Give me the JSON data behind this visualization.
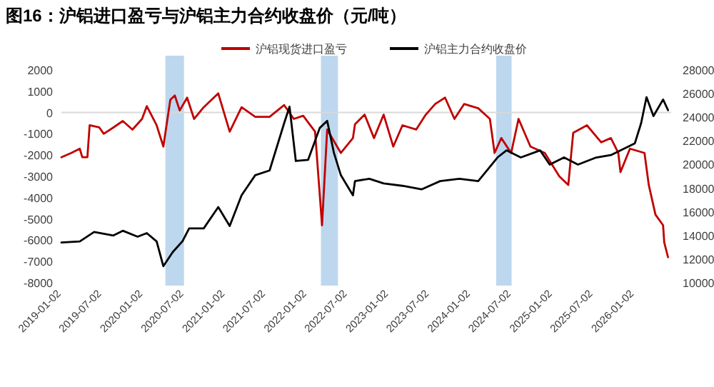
{
  "chart_data": {
    "type": "line",
    "title": "图16：沪铝进口盈亏与沪铝主力合约收盘价（元/吨）",
    "xlim": [
      "2019-01-02",
      "2026-06-15"
    ],
    "xticks": [
      "2019-01-02",
      "2019-07-02",
      "2020-01-02",
      "2020-07-02",
      "2021-01-02",
      "2021-07-02",
      "2022-01-02",
      "2022-07-02",
      "2023-01-02",
      "2023-07-02",
      "2024-01-02",
      "2024-07-02",
      "2025-01-02",
      "2025-07-02",
      "2026-01-02"
    ],
    "ylim": [
      -8000,
      2000
    ],
    "yticks": [
      -8000,
      -7000,
      -6000,
      -5000,
      -4000,
      -3000,
      -2000,
      -1000,
      0,
      1000,
      2000
    ],
    "y2lim": [
      10000,
      28000
    ],
    "y2ticks": [
      10000,
      12000,
      14000,
      16000,
      18000,
      20000,
      22000,
      24000,
      26000,
      28000
    ],
    "legend": "top",
    "grid": false,
    "line_style": "solid",
    "marker": "none",
    "ref_lines": [
      {
        "axis": "y",
        "value": 0,
        "color": "#d9d9d9"
      }
    ],
    "bands": [
      {
        "axis": "x",
        "from": "2020-04-10",
        "to": "2020-07-02",
        "color": "#bdd7ee"
      },
      {
        "axis": "x",
        "from": "2022-03-05",
        "to": "2022-05-20",
        "color": "#bdd7ee"
      },
      {
        "axis": "x",
        "from": "2024-04-25",
        "to": "2024-07-03",
        "color": "#bdd7ee"
      }
    ],
    "series": [
      {
        "name": "沪铝现货进口盈亏",
        "color": "#c00000",
        "axis": "y",
        "x": [
          "2019-01-02",
          "2019-02-15",
          "2019-03-25",
          "2019-04-05",
          "2019-04-28",
          "2019-05-08",
          "2019-06-20",
          "2019-07-10",
          "2019-08-22",
          "2019-10-03",
          "2019-11-15",
          "2019-12-28",
          "2020-01-18",
          "2020-03-02",
          "2020-04-01",
          "2020-05-02",
          "2020-05-22",
          "2020-06-13",
          "2020-07-16",
          "2020-08-16",
          "2020-09-28",
          "2020-12-02",
          "2021-01-22",
          "2021-03-16",
          "2021-05-16",
          "2021-07-19",
          "2021-09-22",
          "2021-11-04",
          "2021-12-16",
          "2022-02-07",
          "2022-03-10",
          "2022-04-02",
          "2022-06-02",
          "2022-07-26",
          "2022-08-04",
          "2022-09-16",
          "2022-10-28",
          "2022-12-10",
          "2023-01-22",
          "2023-03-04",
          "2023-05-04",
          "2023-06-16",
          "2023-07-28",
          "2023-09-10",
          "2023-10-22",
          "2023-12-04",
          "2024-02-05",
          "2024-03-28",
          "2024-04-18",
          "2024-05-18",
          "2024-07-01",
          "2024-08-03",
          "2024-09-25",
          "2024-11-28",
          "2025-02-01",
          "2025-03-13",
          "2025-04-04",
          "2025-06-04",
          "2025-08-07",
          "2025-09-19",
          "2025-10-22",
          "2025-11-01",
          "2025-12-13",
          "2026-02-16",
          "2026-03-07",
          "2026-04-06",
          "2026-05-10",
          "2026-05-15",
          "2026-06-01"
        ],
        "values": [
          -2100,
          -1900,
          -1700,
          -2100,
          -2100,
          -600,
          -700,
          -1000,
          -700,
          -400,
          -800,
          -300,
          300,
          -600,
          -1600,
          600,
          800,
          100,
          700,
          -300,
          250,
          900,
          -900,
          250,
          -200,
          -200,
          350,
          -300,
          -150,
          -900,
          -5300,
          -800,
          -1900,
          -1200,
          -550,
          -100,
          -1200,
          -100,
          -1600,
          -600,
          -800,
          -100,
          400,
          700,
          -300,
          400,
          200,
          -300,
          -1900,
          -1200,
          -1900,
          -300,
          -1600,
          -1900,
          -3000,
          -3400,
          -950,
          -600,
          -1400,
          -1200,
          -1900,
          -2800,
          -1700,
          -1900,
          -3400,
          -4800,
          -5300,
          -6100,
          -6800
        ]
      },
      {
        "name": "沪铝主力合约收盘价",
        "color": "#000000",
        "axis": "y2",
        "x": [
          "2019-01-02",
          "2019-03-25",
          "2019-05-28",
          "2019-08-22",
          "2019-10-03",
          "2019-12-08",
          "2020-01-18",
          "2020-03-02",
          "2020-04-01",
          "2020-05-13",
          "2020-06-25",
          "2020-07-25",
          "2020-09-28",
          "2020-12-02",
          "2021-01-22",
          "2021-03-16",
          "2021-05-16",
          "2021-07-19",
          "2021-09-22",
          "2021-10-16",
          "2021-11-13",
          "2022-01-07",
          "2022-02-28",
          "2022-04-02",
          "2022-05-02",
          "2022-06-02",
          "2022-07-26",
          "2022-08-04",
          "2022-10-07",
          "2022-12-10",
          "2023-03-04",
          "2023-05-28",
          "2023-08-19",
          "2023-11-13",
          "2024-02-05",
          "2024-05-01",
          "2024-06-10",
          "2024-08-13",
          "2024-11-07",
          "2024-12-20",
          "2025-02-22",
          "2025-04-25",
          "2025-07-16",
          "2025-09-19",
          "2026-01-04",
          "2026-02-01",
          "2026-02-25",
          "2026-03-28",
          "2026-05-10",
          "2026-06-01"
        ],
        "values": [
          13400,
          13500,
          14300,
          14000,
          14400,
          13900,
          14200,
          13500,
          11400,
          12600,
          13500,
          14600,
          14600,
          16400,
          14800,
          17400,
          19100,
          19500,
          23500,
          24900,
          20300,
          20400,
          23100,
          23700,
          21000,
          19100,
          17400,
          18600,
          18800,
          18400,
          18200,
          17900,
          18600,
          18800,
          18600,
          20600,
          21200,
          20600,
          21200,
          20000,
          20600,
          20000,
          20600,
          20800,
          21800,
          23500,
          25700,
          24100,
          25500,
          24600
        ]
      }
    ]
  }
}
